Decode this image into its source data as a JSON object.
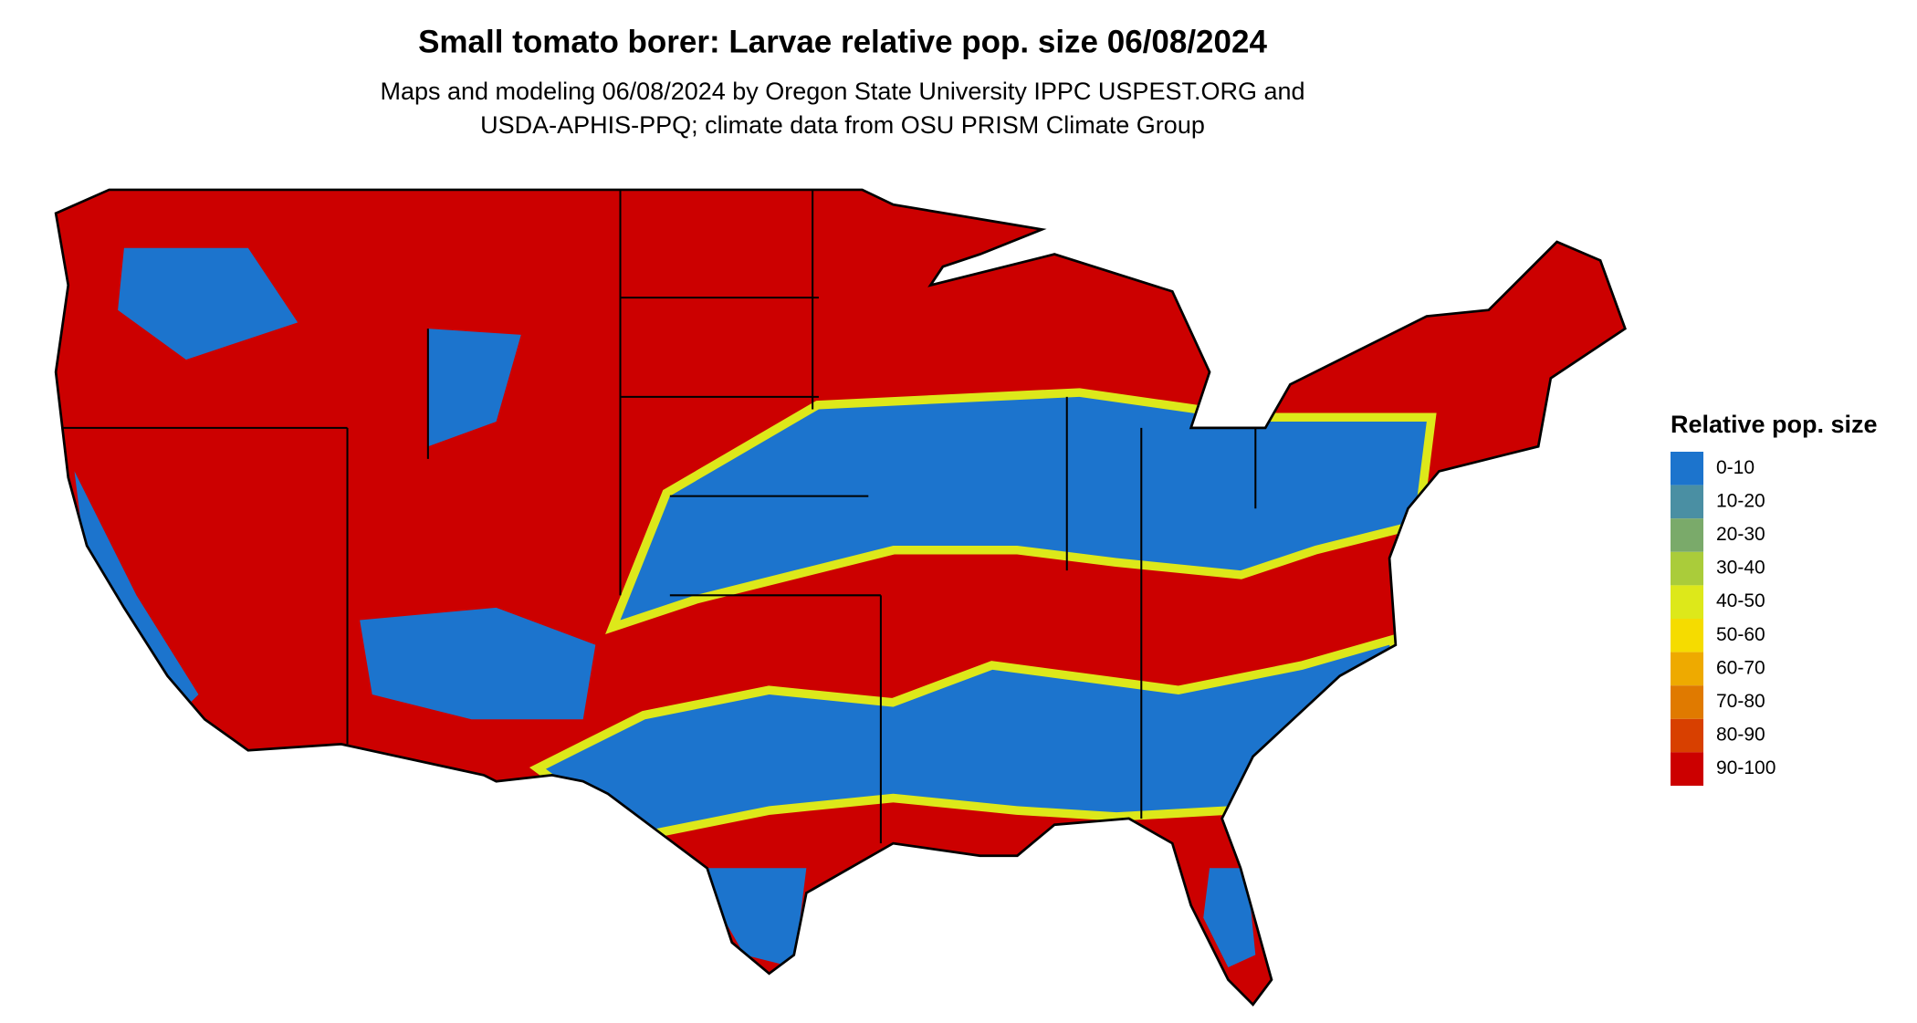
{
  "title": "Small tomato borer: Larvae relative pop. size 06/08/2024",
  "subtitle": [
    "Maps and modeling 06/08/2024 by Oregon State University IPPC USPEST.ORG and",
    "USDA-APHIS-PPQ; climate data from OSU PRISM Climate Group"
  ],
  "legend": {
    "title": "Relative pop. size",
    "items": [
      {
        "label": "0-10",
        "color": "#1c74cd"
      },
      {
        "label": "10-20",
        "color": "#4a8fa3"
      },
      {
        "label": "20-30",
        "color": "#7aaa6a"
      },
      {
        "label": "30-40",
        "color": "#aacc3a"
      },
      {
        "label": "40-50",
        "color": "#dde81a"
      },
      {
        "label": "50-60",
        "color": "#f5dc00"
      },
      {
        "label": "60-70",
        "color": "#eeaa00"
      },
      {
        "label": "70-80",
        "color": "#e07a00"
      },
      {
        "label": "80-90",
        "color": "#d84000"
      },
      {
        "label": "90-100",
        "color": "#cc0000"
      }
    ]
  }
}
